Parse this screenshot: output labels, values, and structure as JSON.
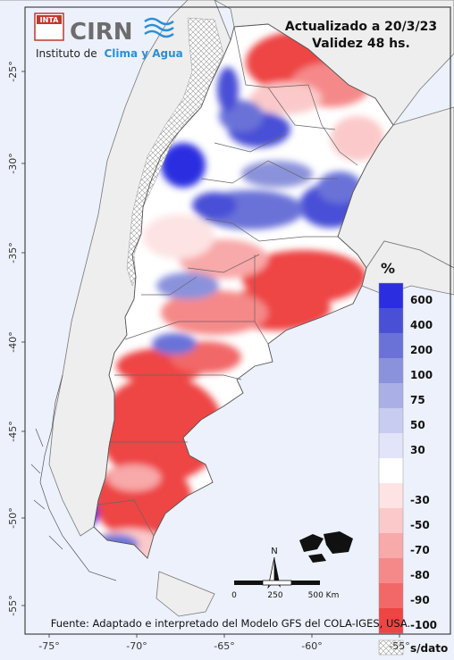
{
  "header": {
    "logo_inta": "INTA",
    "logo_cirn": "CIRN",
    "institute_prefix": "Instituto de",
    "institute_highlight": "Clima y Agua",
    "updated": "Actualizado a 20/3/23",
    "validity": "Validez 48 hs."
  },
  "legend": {
    "unit": "%",
    "items": [
      {
        "label": "600",
        "color": "#2b2ee0"
      },
      {
        "label": "400",
        "color": "#4a50d6"
      },
      {
        "label": "200",
        "color": "#6a72d8"
      },
      {
        "label": "100",
        "color": "#8b92dc"
      },
      {
        "label": "75",
        "color": "#aab0e6"
      },
      {
        "label": "50",
        "color": "#c8ccf1"
      },
      {
        "label": "30",
        "color": "#e2e4fa"
      },
      {
        "label": "",
        "color": "#ffffff"
      },
      {
        "label": "-30",
        "color": "#fde3e3"
      },
      {
        "label": "-50",
        "color": "#fbc9c9"
      },
      {
        "label": "-70",
        "color": "#f8a9a9"
      },
      {
        "label": "-80",
        "color": "#f58989"
      },
      {
        "label": "-90",
        "color": "#f26868"
      },
      {
        "label": "-100",
        "color": "#ee4444"
      }
    ],
    "no_data": "s/dato"
  },
  "scale": {
    "n": "N",
    "labels": [
      "0",
      "250",
      "500 Km"
    ]
  },
  "source": "Fuente: Adaptado e interpretado del Modelo GFS del COLA-IGES, USA.",
  "axes": {
    "lat_labels": [
      "-25°",
      "-30°",
      "-35°",
      "-40°",
      "-45°",
      "-50°",
      "-55°"
    ],
    "lon_labels": [
      "-75°",
      "-70°",
      "-65°",
      "-60°",
      "-55°"
    ]
  },
  "colors": {
    "ocean": "#ecf1fb",
    "neighbors": "#eeeeee",
    "borders": "#777777",
    "deficit": "#ee4444",
    "excess": "#3a3fd8"
  }
}
